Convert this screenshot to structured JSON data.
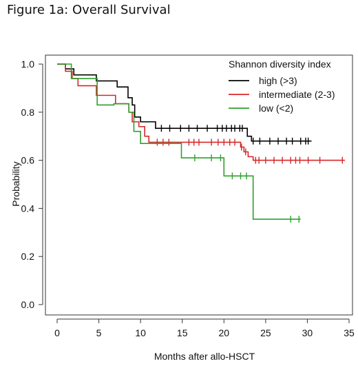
{
  "figure_title": "Figure 1a: Overall Survival",
  "chart_data": {
    "type": "line",
    "title": "Figure 1a: Overall Survival",
    "xlabel": "Months after allo-HSCT",
    "ylabel": "Probability",
    "xlim": [
      0,
      35
    ],
    "ylim": [
      0,
      1.0
    ],
    "xticks": [
      "0",
      "5",
      "10",
      "15",
      "20",
      "25",
      "30",
      "35"
    ],
    "yticks": [
      "0.0",
      "0.2",
      "0.4",
      "0.6",
      "0.8",
      "1.0"
    ],
    "grid": false,
    "legend_title": "Shannon diversity index",
    "legend_position": "top-right",
    "series": [
      {
        "name": "high (>3)",
        "color": "#000000",
        "steps": [
          [
            0,
            1.0
          ],
          [
            1.0,
            0.98
          ],
          [
            2.0,
            0.955
          ],
          [
            4.7,
            0.93
          ],
          [
            7.2,
            0.905
          ],
          [
            8.5,
            0.86
          ],
          [
            9.0,
            0.83
          ],
          [
            9.3,
            0.78
          ],
          [
            10.0,
            0.76
          ],
          [
            11.8,
            0.733
          ],
          [
            22.8,
            0.7
          ],
          [
            23.3,
            0.68
          ],
          [
            30.5,
            0.68
          ]
        ],
        "censor": [
          12.5,
          13.5,
          14.8,
          15.8,
          16.8,
          18.0,
          19.2,
          19.8,
          20.3,
          20.9,
          21.3,
          21.9,
          22.2,
          23.5,
          24.3,
          25.5,
          26.5,
          27.5,
          28.2,
          29.2,
          29.8,
          30.1
        ]
      },
      {
        "name": "intermediate (2-3)",
        "color": "#d62728",
        "steps": [
          [
            0,
            1.0
          ],
          [
            1.0,
            0.97
          ],
          [
            1.8,
            0.94
          ],
          [
            2.5,
            0.91
          ],
          [
            4.7,
            0.87
          ],
          [
            7.0,
            0.835
          ],
          [
            8.6,
            0.8
          ],
          [
            9.0,
            0.76
          ],
          [
            9.8,
            0.74
          ],
          [
            10.5,
            0.7
          ],
          [
            11.0,
            0.675
          ],
          [
            22.0,
            0.655
          ],
          [
            22.4,
            0.635
          ],
          [
            22.9,
            0.615
          ],
          [
            23.5,
            0.6
          ],
          [
            34.5,
            0.6
          ]
        ],
        "censor": [
          12.0,
          12.7,
          13.4,
          15.8,
          16.4,
          17.0,
          18.5,
          19.3,
          20.0,
          20.7,
          21.3,
          22.1,
          22.6,
          23.8,
          24.2,
          25.0,
          26.0,
          27.0,
          28.0,
          28.6,
          29.1,
          30.1,
          31.5,
          34.2
        ]
      },
      {
        "name": "low (<2)",
        "color": "#2ca02c",
        "steps": [
          [
            0,
            1.0
          ],
          [
            1.7,
            0.94
          ],
          [
            4.8,
            0.83
          ],
          [
            6.8,
            0.835
          ],
          [
            8.6,
            0.8
          ],
          [
            9.2,
            0.72
          ],
          [
            10.0,
            0.67
          ],
          [
            14.9,
            0.61
          ],
          [
            20.0,
            0.535
          ],
          [
            23.5,
            0.355
          ],
          [
            29.2,
            0.355
          ]
        ],
        "censor": [
          16.5,
          18.5,
          19.6,
          21.0,
          22.0,
          22.7,
          28.0,
          29.0
        ]
      }
    ]
  }
}
